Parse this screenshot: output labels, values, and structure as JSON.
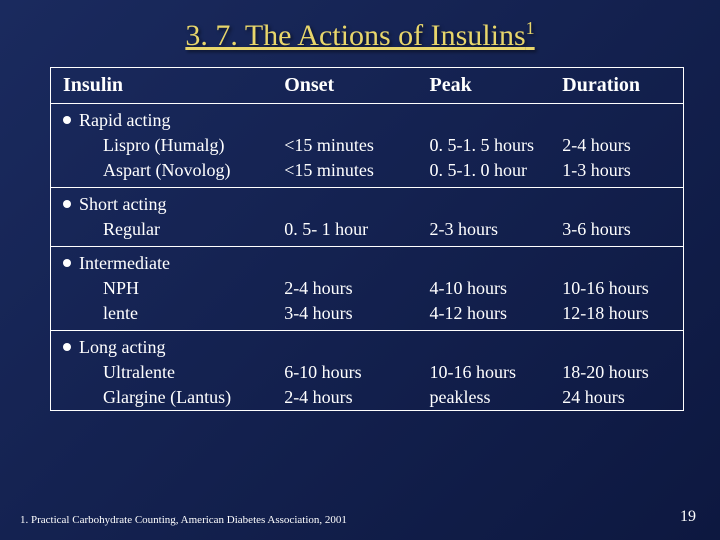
{
  "title_prefix": "3. 7. The Actions of Insulins",
  "title_sup": "1",
  "headers": [
    "Insulin",
    "Onset",
    "Peak",
    "Duration"
  ],
  "groups": [
    {
      "label": "Rapid acting",
      "rows": [
        {
          "name": "Lispro (Humalg)",
          "onset": "<15 minutes",
          "peak": "0. 5-1. 5 hours",
          "duration": "2-4 hours"
        },
        {
          "name": "Aspart (Novolog)",
          "onset": "<15 minutes",
          "peak": "0. 5-1. 0 hour",
          "duration": "1-3 hours"
        }
      ]
    },
    {
      "label": "Short acting",
      "rows": [
        {
          "name": "Regular",
          "onset": "0. 5- 1 hour",
          "peak": "2-3 hours",
          "duration": "3-6 hours"
        }
      ]
    },
    {
      "label": "Intermediate",
      "rows": [
        {
          "name": "NPH",
          "onset": "2-4 hours",
          "peak": "4-10 hours",
          "duration": "10-16 hours"
        },
        {
          "name": "lente",
          "onset": "3-4 hours",
          "peak": "4-12 hours",
          "duration": "12-18 hours"
        }
      ]
    },
    {
      "label": "Long acting",
      "rows": [
        {
          "name": "Ultralente",
          "onset": "6-10 hours",
          "peak": "10-16 hours",
          "duration": "18-20 hours"
        },
        {
          "name": "Glargine (Lantus)",
          "onset": "2-4 hours",
          "peak": "peakless",
          "duration": "24 hours"
        }
      ]
    }
  ],
  "footnote": "1. Practical Carbohydrate Counting, American Diabetes Association, 2001",
  "pagenum": "19",
  "colors": {
    "title": "#e8d66b",
    "bg_from": "#1a2a5e",
    "bg_to": "#0d1840",
    "border": "#ffffff",
    "text": "#ffffff"
  }
}
